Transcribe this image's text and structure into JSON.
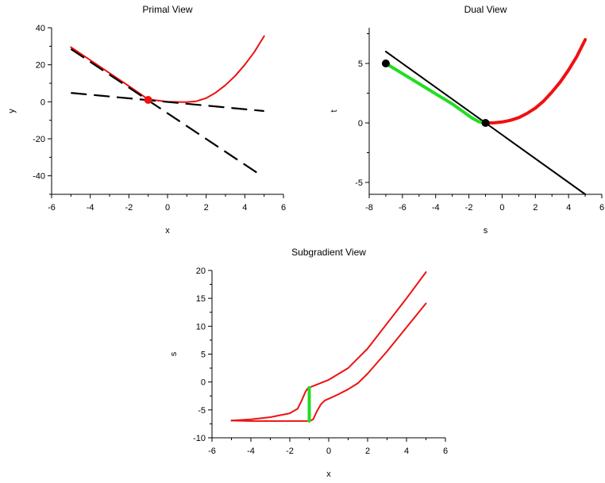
{
  "chart_data": [
    {
      "id": "primal",
      "type": "line",
      "title": "Primal View",
      "xlabel": "x",
      "ylabel": "y",
      "xlim": [
        -6,
        6
      ],
      "ylim": [
        -50,
        40
      ],
      "xticks": [
        -6,
        -4,
        -2,
        0,
        2,
        4,
        6
      ],
      "yticks": [
        -40,
        -20,
        0,
        20,
        40
      ],
      "series": [
        {
          "style": "solid",
          "color": "#ee1111",
          "width": 2,
          "x": [
            -5,
            -4,
            -3,
            -2,
            -1,
            0,
            0.5,
            1,
            1.5,
            2,
            2.5,
            3,
            3.5,
            4,
            4.5,
            5
          ],
          "y": [
            29.5,
            22.5,
            15.5,
            8.5,
            1.3,
            0,
            -0.1,
            -0.2,
            0.3,
            2,
            5,
            9,
            14,
            20,
            27,
            35.5
          ]
        },
        {
          "style": "dash",
          "color": "#000000",
          "width": 2.2,
          "x": [
            -5,
            4.8
          ],
          "y": [
            28.5,
            -39.5
          ]
        },
        {
          "style": "dash",
          "color": "#000000",
          "width": 2.2,
          "x": [
            -5,
            5
          ],
          "y": [
            4.8,
            -5
          ]
        }
      ],
      "markers": [
        {
          "x": -1,
          "y": 1,
          "color": "#ee1111"
        }
      ]
    },
    {
      "id": "dual",
      "type": "line",
      "title": "Dual View",
      "xlabel": "s",
      "ylabel": "t",
      "xlim": [
        -8,
        6
      ],
      "ylim": [
        -6,
        8
      ],
      "xticks": [
        -8,
        -6,
        -4,
        -2,
        0,
        2,
        4,
        6
      ],
      "yticks": [
        -5,
        0,
        5
      ],
      "series": [
        {
          "style": "solid",
          "color": "#000000",
          "width": 2,
          "x": [
            -7,
            5
          ],
          "y": [
            6,
            -6
          ]
        },
        {
          "style": "solid",
          "color": "#22dd22",
          "width": 4,
          "x": [
            -7,
            -6,
            -5,
            -4,
            -3,
            -2.3,
            -1.8,
            -1.4,
            -1
          ],
          "y": [
            5,
            4.15,
            3.3,
            2.45,
            1.6,
            0.9,
            0.4,
            0.1,
            0
          ]
        },
        {
          "style": "solid",
          "color": "#ee1111",
          "width": 4,
          "x": [
            -1,
            -0.5,
            0,
            0.5,
            1,
            1.5,
            2,
            2.5,
            3,
            3.5,
            4,
            4.5,
            5
          ],
          "y": [
            0,
            0.01,
            0.08,
            0.22,
            0.45,
            0.8,
            1.25,
            1.85,
            2.6,
            3.45,
            4.45,
            5.6,
            7
          ]
        }
      ],
      "markers": [
        {
          "x": -7,
          "y": 5,
          "color": "#000000"
        },
        {
          "x": -1,
          "y": 0,
          "color": "#000000"
        }
      ]
    },
    {
      "id": "subgradient",
      "type": "line",
      "title": "Subgradient View",
      "xlabel": "x",
      "ylabel": "s",
      "xlim": [
        -6,
        6
      ],
      "ylim": [
        -10,
        20
      ],
      "xticks": [
        -6,
        -4,
        -2,
        0,
        2,
        4,
        6
      ],
      "yticks": [
        -10,
        -5,
        0,
        5,
        10,
        15,
        20
      ],
      "series": [
        {
          "style": "solid",
          "color": "#ee1111",
          "width": 2,
          "x": [
            -5,
            -4,
            -3,
            -2,
            -1.6,
            -1.4,
            -1.2,
            -1.1,
            -1,
            0,
            1,
            2,
            3,
            4,
            5
          ],
          "y": [
            -6.9,
            -6.7,
            -6.3,
            -5.6,
            -4.8,
            -3.4,
            -1.8,
            -1.2,
            -1,
            0.4,
            2.5,
            6,
            10.5,
            15,
            19.7
          ]
        },
        {
          "style": "solid",
          "color": "#ee1111",
          "width": 2,
          "x": [
            -5,
            -4,
            -3,
            -2,
            -1,
            -0.8,
            -0.6,
            -0.4,
            -0.2,
            0,
            0.5,
            1,
            1.5,
            2,
            3,
            4,
            5
          ],
          "y": [
            -6.9,
            -7,
            -7,
            -7,
            -7,
            -6.7,
            -5.2,
            -4,
            -3.3,
            -3,
            -2.2,
            -1.3,
            -0.2,
            1.5,
            5.5,
            9.8,
            14.1
          ]
        },
        {
          "style": "solid",
          "color": "#22dd22",
          "width": 4,
          "x": [
            -1,
            -1
          ],
          "y": [
            -1,
            -7
          ]
        }
      ],
      "markers": []
    }
  ]
}
